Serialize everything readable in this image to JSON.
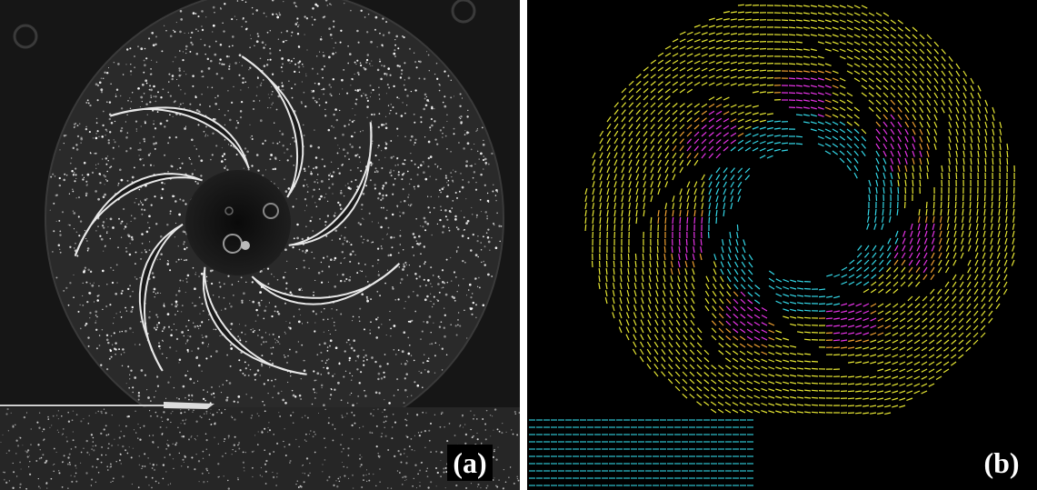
{
  "panel_a": {
    "label": "(a)",
    "content": "piv-particle-image",
    "colors": {
      "background": "#141414",
      "particle": "#ffffff"
    },
    "blade_count": 7
  },
  "panel_b": {
    "label": "(b)",
    "content": "velocity-vector-field",
    "colors": {
      "background": "#000000",
      "low_speed": "#33d6e6",
      "mid_speed": "#e6e633",
      "high_speed": "#e633e6",
      "transition": "#f0a030"
    }
  }
}
